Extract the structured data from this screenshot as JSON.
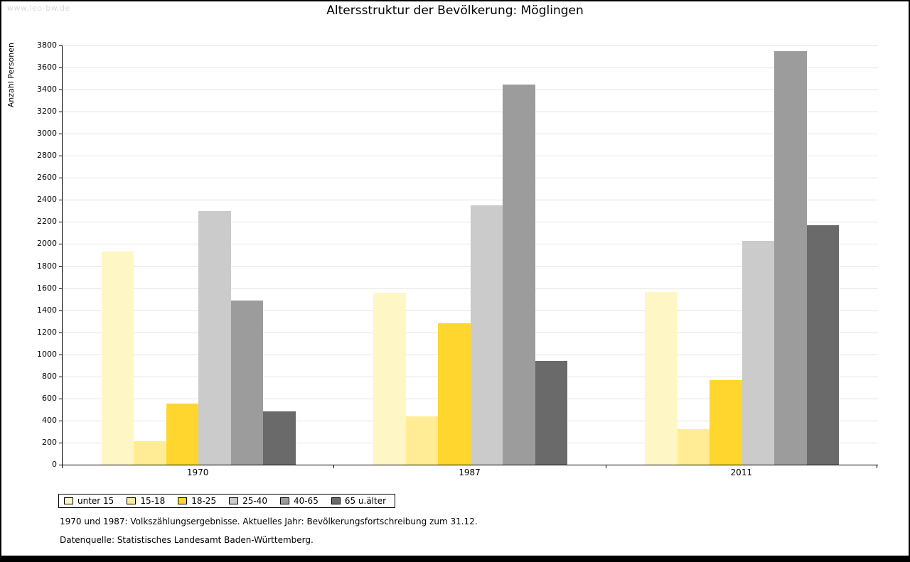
{
  "watermark": "www.leo-bw.de",
  "title": "Altersstruktur der Bevölkerung: Möglingen",
  "ylabel": "Anzahl Personen",
  "footnotes": [
    "1970 und 1987: Volkszählungsergebnisse. Aktuelles Jahr: Bevölkerungsfortschreibung zum 31.12.",
    "Datenquelle: Statistisches Landesamt Baden-Württemberg."
  ],
  "chart_data": {
    "type": "bar",
    "title": "Altersstruktur der Bevölkerung: Möglingen",
    "xlabel": "",
    "ylabel": "Anzahl Personen",
    "categories": [
      "1970",
      "1987",
      "2011"
    ],
    "series": [
      {
        "name": "unter 15",
        "color": "#FFF6C5",
        "values": [
          1930,
          1560,
          1565
        ]
      },
      {
        "name": "15-18",
        "color": "#FFEC95",
        "values": [
          215,
          440,
          325
        ]
      },
      {
        "name": "18-25",
        "color": "#FFD62E",
        "values": [
          555,
          1285,
          765
        ]
      },
      {
        "name": "25-40",
        "color": "#CBCBCB",
        "values": [
          2300,
          2350,
          2030
        ]
      },
      {
        "name": "40-65",
        "color": "#9C9C9C",
        "values": [
          1490,
          3445,
          3750
        ]
      },
      {
        "name": "65 u.älter",
        "color": "#6A6A6A",
        "values": [
          480,
          940,
          2170
        ]
      }
    ],
    "ylim": [
      0,
      3800
    ],
    "ytick_step": 200,
    "grid": true,
    "legend_position": "bottom-left"
  }
}
